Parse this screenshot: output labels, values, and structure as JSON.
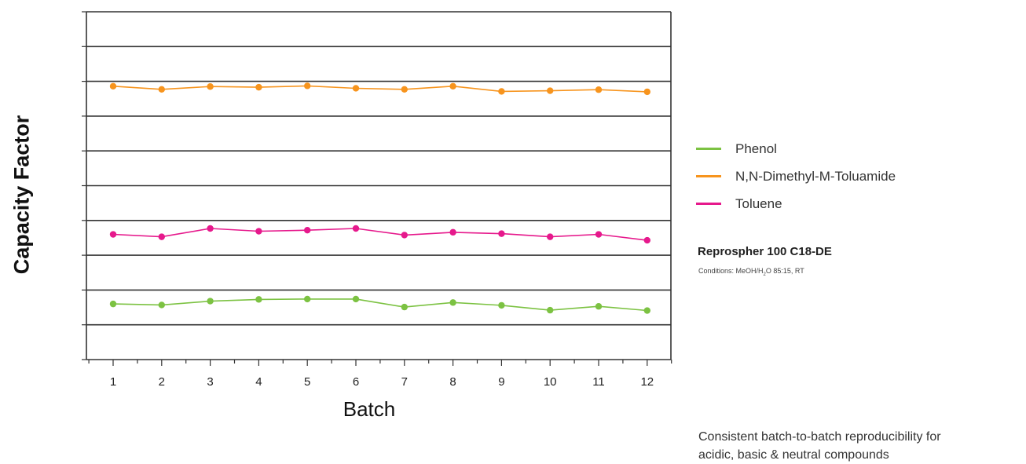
{
  "chart_data": {
    "type": "line",
    "ylabel": "Capacity Factor",
    "xlabel": "Batch",
    "x": [
      1,
      2,
      3,
      4,
      5,
      6,
      7,
      8,
      9,
      10,
      11,
      12
    ],
    "ylim": [
      0,
      10
    ],
    "grid": true,
    "legend_placement": "right",
    "series": [
      {
        "name": "Phenol",
        "color": "#7cc242",
        "values": [
          1.6,
          1.57,
          1.68,
          1.73,
          1.74,
          1.74,
          1.51,
          1.64,
          1.56,
          1.42,
          1.53,
          1.41
        ]
      },
      {
        "name": "N,N-Dimethyl-M-Toluamide",
        "color": "#f7941d",
        "values": [
          7.86,
          7.77,
          7.85,
          7.83,
          7.87,
          7.8,
          7.77,
          7.86,
          7.71,
          7.73,
          7.76,
          7.7
        ]
      },
      {
        "name": "Toluene",
        "color": "#e6198c",
        "values": [
          3.6,
          3.53,
          3.77,
          3.69,
          3.72,
          3.77,
          3.58,
          3.66,
          3.62,
          3.53,
          3.6,
          3.43
        ]
      }
    ]
  },
  "info": {
    "product": "Reprospher 100 C18-DE",
    "conditions_prefix": "Conditions: MeOH/H",
    "conditions_sub": "2",
    "conditions_suffix": "O 85:15, RT"
  },
  "footer": {
    "line1": "Consistent batch-to-batch reproducibility for",
    "line2": "acidic, basic & neutral compounds"
  }
}
